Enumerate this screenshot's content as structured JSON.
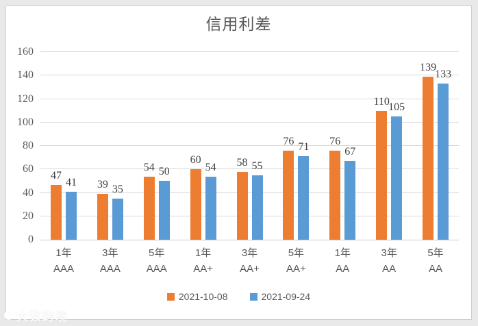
{
  "chart_data": {
    "type": "bar",
    "title": "信用利差",
    "categories": [
      [
        "1年",
        "AAA"
      ],
      [
        "3年",
        "AAA"
      ],
      [
        "5年",
        "AAA"
      ],
      [
        "1年",
        "AA+"
      ],
      [
        "3年",
        "AA+"
      ],
      [
        "5年",
        "AA+"
      ],
      [
        "1年",
        "AA"
      ],
      [
        "3年",
        "AA"
      ],
      [
        "5年",
        "AA"
      ]
    ],
    "series": [
      {
        "name": "2021-10-08",
        "color": "#ED7D31",
        "values": [
          47,
          39,
          54,
          60,
          58,
          76,
          76,
          110,
          139
        ]
      },
      {
        "name": "2021-09-24",
        "color": "#5B9BD5",
        "values": [
          41,
          35,
          50,
          54,
          55,
          71,
          67,
          105,
          133
        ]
      }
    ],
    "ylim": [
      0,
      160
    ],
    "yticks": [
      0,
      20,
      40,
      60,
      80,
      100,
      120,
      140,
      160
    ],
    "grid": "horizontal",
    "legend_position": "bottom",
    "data_labels": true,
    "xlabel": "",
    "ylabel": ""
  },
  "watermark": {
    "text": "大数跨境"
  }
}
